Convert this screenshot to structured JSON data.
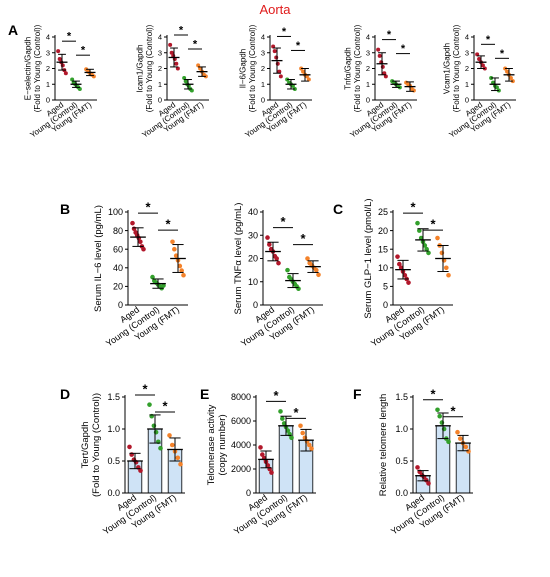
{
  "header": {
    "title": "Aorta"
  },
  "colors": {
    "aged": "#b2182b",
    "young_control": "#33a02c",
    "young_fmt": "#f4822a",
    "bar_fill": "#cfe3f6",
    "axis": "#000000",
    "header_title": "#e01b1b"
  },
  "groups": [
    "Aged",
    "Young (Control)",
    "Young (FMT)"
  ],
  "significance_marker": "*",
  "chart_data": [
    {
      "panel": "A",
      "type": "bar",
      "ylabel": "E−selectin/Gapdh\n(Fold to Young (Control))",
      "ylim": [
        0,
        4
      ],
      "yticks": [
        0,
        1,
        2,
        3,
        4
      ],
      "tick_labels": [
        "0",
        "1",
        "2",
        "3",
        "4"
      ],
      "show_bars": false,
      "means": [
        2.4,
        1.0,
        1.75
      ],
      "sd": [
        0.5,
        0.2,
        0.2
      ],
      "points": [
        [
          3.1,
          2.6,
          2.4,
          2.2,
          1.9,
          1.7
        ],
        [
          1.3,
          1.1,
          1.0,
          0.9,
          0.8,
          0.7
        ],
        [
          1.95,
          1.8,
          1.7,
          1.6,
          1.5
        ]
      ]
    },
    {
      "panel": "",
      "type": "bar",
      "ylabel": "Icam1/Gapdh\n(Fold to Young (Control))",
      "ylim": [
        0,
        4
      ],
      "yticks": [
        0,
        1,
        2,
        3,
        4
      ],
      "tick_labels": [
        "0",
        "1",
        "2",
        "3",
        "4"
      ],
      "show_bars": false,
      "means": [
        2.7,
        1.0,
        1.8
      ],
      "sd": [
        0.6,
        0.3,
        0.3
      ],
      "points": [
        [
          3.5,
          3.0,
          2.8,
          2.6,
          2.3,
          2.0
        ],
        [
          1.4,
          1.2,
          1.0,
          0.9,
          0.7,
          0.6
        ],
        [
          2.2,
          2.0,
          1.8,
          1.6,
          1.5
        ]
      ]
    },
    {
      "panel": "",
      "type": "bar",
      "ylabel": "Il−6/Gapdh\n(Fold to Young (Control))",
      "ylim": [
        0,
        4
      ],
      "yticks": [
        0,
        1,
        2,
        3,
        4
      ],
      "tick_labels": [
        "0",
        "1",
        "2",
        "3",
        "4"
      ],
      "show_bars": false,
      "means": [
        2.5,
        1.0,
        1.6
      ],
      "sd": [
        0.8,
        0.3,
        0.4
      ],
      "points": [
        [
          3.4,
          3.1,
          2.7,
          2.3,
          1.8,
          1.5
        ],
        [
          1.3,
          1.1,
          1.0,
          0.9,
          0.7
        ],
        [
          2.0,
          1.8,
          1.6,
          1.5,
          1.3
        ]
      ]
    },
    {
      "panel": "",
      "type": "bar",
      "ylabel": "Tnfα/Gapdh\n(Fold to Young (Control))",
      "ylim": [
        0,
        4
      ],
      "yticks": [
        0,
        1,
        2,
        3,
        4
      ],
      "tick_labels": [
        "0",
        "1",
        "2",
        "3",
        "4"
      ],
      "show_bars": false,
      "means": [
        2.3,
        1.0,
        0.85
      ],
      "sd": [
        0.7,
        0.2,
        0.3
      ],
      "points": [
        [
          3.2,
          2.8,
          2.4,
          2.1,
          1.7,
          1.5
        ],
        [
          1.2,
          1.1,
          1.0,
          0.9,
          0.8
        ],
        [
          1.1,
          1.0,
          0.9,
          0.7,
          0.6
        ]
      ]
    },
    {
      "panel": "",
      "type": "bar",
      "ylabel": "Vcam1/Gapdh\n(Fold to Young (Control))",
      "ylim": [
        0,
        4
      ],
      "yticks": [
        0,
        1,
        2,
        3,
        4
      ],
      "tick_labels": [
        "0",
        "1",
        "2",
        "3",
        "4"
      ],
      "show_bars": false,
      "means": [
        2.4,
        1.0,
        1.6
      ],
      "sd": [
        0.4,
        0.4,
        0.4
      ],
      "points": [
        [
          2.9,
          2.6,
          2.4,
          2.2,
          2.0
        ],
        [
          1.4,
          1.1,
          0.9,
          0.8,
          0.6
        ],
        [
          2.0,
          1.8,
          1.6,
          1.4,
          1.2
        ]
      ]
    },
    {
      "panel": "B",
      "type": "scatter",
      "ylabel": "Serum IL−6 level (pg/mL)",
      "ylim": [
        0,
        100
      ],
      "yticks": [
        0,
        20,
        40,
        60,
        80,
        100
      ],
      "tick_labels": [
        "0",
        "20",
        "40",
        "60",
        "80",
        "100"
      ],
      "show_bars": false,
      "means": [
        73,
        23,
        50
      ],
      "sd": [
        10,
        5,
        15
      ],
      "points": [
        [
          88,
          82,
          78,
          75,
          72,
          68,
          63,
          60
        ],
        [
          30,
          26,
          24,
          22,
          20,
          18,
          21
        ],
        [
          68,
          60,
          53,
          48,
          42,
          37,
          32
        ]
      ]
    },
    {
      "panel": "",
      "type": "scatter",
      "ylabel": "Serum TNFα level (pg/mL)",
      "ylim": [
        0,
        40
      ],
      "yticks": [
        0,
        10,
        20,
        30,
        40
      ],
      "tick_labels": [
        "0",
        "10",
        "20",
        "30",
        "40"
      ],
      "show_bars": false,
      "means": [
        23,
        10.5,
        16.5
      ],
      "sd": [
        4,
        3,
        2.5
      ],
      "points": [
        [
          29,
          26,
          24,
          23,
          21,
          20,
          18
        ],
        [
          15,
          12,
          11,
          10,
          9,
          8,
          7
        ],
        [
          20,
          18,
          17,
          16,
          15,
          13
        ]
      ]
    },
    {
      "panel": "C",
      "type": "scatter",
      "ylabel": "Serum GLP−1 level (pmol/L)",
      "ylim": [
        0,
        25
      ],
      "yticks": [
        0,
        5,
        10,
        15,
        20,
        25
      ],
      "tick_labels": [
        "0",
        "5",
        "10",
        "15",
        "20",
        "25"
      ],
      "show_bars": false,
      "means": [
        9.5,
        17.5,
        12.5
      ],
      "sd": [
        2.5,
        3,
        3.5
      ],
      "points": [
        [
          13,
          11,
          10,
          9,
          8,
          7,
          6
        ],
        [
          22,
          20,
          18,
          17,
          16,
          15,
          14
        ],
        [
          18,
          16,
          14,
          12,
          10,
          8
        ]
      ]
    },
    {
      "panel": "D",
      "type": "bar",
      "ylabel": "Tert/Gapdh\n(Fold to Young (Control))",
      "ylim": [
        0,
        1.5
      ],
      "yticks": [
        0,
        0.5,
        1.0,
        1.5
      ],
      "tick_labels": [
        "0.0",
        "0.5",
        "1.0",
        "1.5"
      ],
      "show_bars": true,
      "means": [
        0.5,
        1.0,
        0.68
      ],
      "sd": [
        0.12,
        0.22,
        0.18
      ],
      "points": [
        [
          0.72,
          0.6,
          0.52,
          0.48,
          0.4,
          0.35
        ],
        [
          1.38,
          1.2,
          1.05,
          0.95,
          0.8,
          0.7
        ],
        [
          0.9,
          0.75,
          0.65,
          0.55,
          0.45
        ]
      ]
    },
    {
      "panel": "E",
      "type": "bar",
      "ylabel": "Telomerase activity\n(copy number)",
      "ylim": [
        0,
        8000
      ],
      "yticks": [
        0,
        2000,
        4000,
        6000,
        8000
      ],
      "tick_labels": [
        "0",
        "2000",
        "4000",
        "6000",
        "8000"
      ],
      "show_bars": true,
      "means": [
        2800,
        5600,
        4400
      ],
      "sd": [
        700,
        800,
        900
      ],
      "points": [
        [
          3800,
          3200,
          2900,
          2600,
          2300,
          2000,
          1700
        ],
        [
          6800,
          6200,
          5800,
          5500,
          5200,
          4900,
          4600
        ],
        [
          5600,
          5000,
          4600,
          4300,
          4000,
          3700
        ]
      ]
    },
    {
      "panel": "F",
      "type": "bar",
      "ylabel": "Relative telomere length",
      "ylim": [
        0,
        1.5
      ],
      "yticks": [
        0,
        0.5,
        1.0,
        1.5
      ],
      "tick_labels": [
        "0.0",
        "0.5",
        "1.0",
        "1.5"
      ],
      "show_bars": true,
      "means": [
        0.27,
        1.05,
        0.78
      ],
      "sd": [
        0.08,
        0.2,
        0.12
      ],
      "points": [
        [
          0.4,
          0.33,
          0.28,
          0.25,
          0.2,
          0.15
        ],
        [
          1.3,
          1.2,
          1.1,
          1.0,
          0.85,
          0.8
        ],
        [
          0.95,
          0.85,
          0.78,
          0.72,
          0.65
        ]
      ]
    }
  ]
}
